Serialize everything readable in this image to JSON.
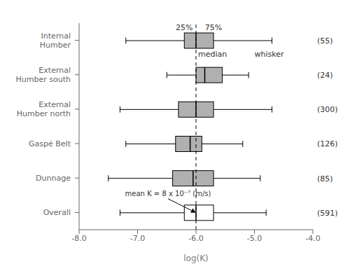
{
  "chart_data": {
    "type": "box",
    "orientation": "horizontal",
    "xlabel": "log(K)",
    "categories": [
      "Internal\nHumber",
      "External\nHumber south",
      "External\nHumber north",
      "Gaspé Belt",
      "Dunnage",
      "Overall"
    ],
    "n_labels": [
      "(55)",
      "(24)",
      "(300)",
      "(126)",
      "(85)",
      "(591)"
    ],
    "boxes": [
      {
        "whislo": -7.2,
        "q1": -6.2,
        "med": -6.0,
        "q3": -5.7,
        "whishi": -4.7
      },
      {
        "whislo": -6.5,
        "q1": -6.0,
        "med": -5.85,
        "q3": -5.55,
        "whishi": -5.1
      },
      {
        "whislo": -7.3,
        "q1": -6.3,
        "med": -6.0,
        "q3": -5.7,
        "whishi": -4.7
      },
      {
        "whislo": -7.2,
        "q1": -6.35,
        "med": -6.1,
        "q3": -5.9,
        "whishi": -5.2
      },
      {
        "whislo": -7.5,
        "q1": -6.4,
        "med": -6.05,
        "q3": -5.7,
        "whishi": -4.9
      },
      {
        "whislo": -7.3,
        "q1": -6.2,
        "med": -6.0,
        "q3": -5.7,
        "whishi": -4.8
      }
    ],
    "colors": [
      "#b0b0b0",
      "#b0b0b0",
      "#b0b0b0",
      "#b0b0b0",
      "#b0b0b0",
      "#ffffff"
    ],
    "xlim": [
      -8.0,
      -4.0
    ],
    "xticks": [
      {
        "value": -8,
        "label": "-8.0"
      },
      {
        "value": -7,
        "label": "-7.0"
      },
      {
        "value": -6,
        "label": "-6.0"
      },
      {
        "value": -5,
        "label": "-5.0"
      },
      {
        "value": -4,
        "label": "-4.0"
      }
    ],
    "dashed_line": {
      "x": -6.0,
      "line_style": "dashed"
    },
    "box_labels": {
      "category": "Internal\nHumber",
      "q1": "25%",
      "q3": "75%",
      "med": "median",
      "whishi": "whisker"
    },
    "mean_annotation": {
      "text": "mean K = 8 x 10⁻⁷ (m/s)",
      "x": -6.0,
      "category": "Overall"
    }
  }
}
